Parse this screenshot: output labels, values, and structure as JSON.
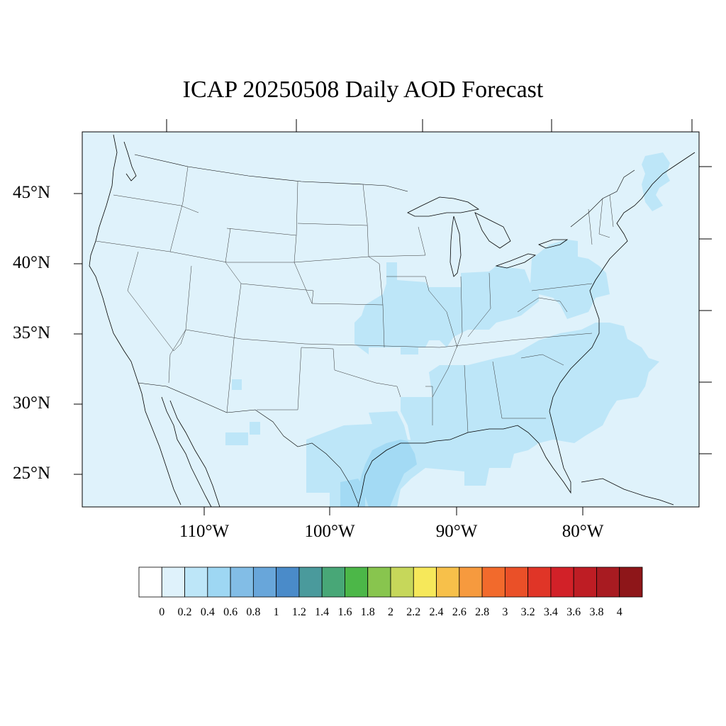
{
  "title": "ICAP 20250508 Daily AOD Forecast",
  "lat_labels": [
    "45°N",
    "40°N",
    "35°N",
    "30°N",
    "25°N"
  ],
  "lon_labels": [
    "110°W",
    "100°W",
    "90°W",
    "80°W"
  ],
  "colorbar": {
    "ticks": [
      "0",
      "0.2",
      "0.4",
      "0.6",
      "0.8",
      "1",
      "1.2",
      "1.4",
      "1.6",
      "1.8",
      "2",
      "2.2",
      "2.4",
      "2.6",
      "2.8",
      "3",
      "3.2",
      "3.4",
      "3.6",
      "3.8",
      "4"
    ],
    "colors": [
      "#ffffff",
      "#dff2fb",
      "#bde6f8",
      "#9ed7f3",
      "#82bde6",
      "#68a6da",
      "#4a8bc9",
      "#4a9a9c",
      "#48a777",
      "#4cb748",
      "#88c54e",
      "#c6d75a",
      "#f6e85a",
      "#f7c04a",
      "#f69a3e",
      "#f26a2c",
      "#ea5028",
      "#e03527",
      "#d22128",
      "#be1d24",
      "#a81b21",
      "#8e1619"
    ]
  },
  "map_colors": {
    "background": "#dff2fb",
    "level_0_4": "#bde6f8",
    "level_0_6": "#a3daf4",
    "outline": "#000000"
  }
}
